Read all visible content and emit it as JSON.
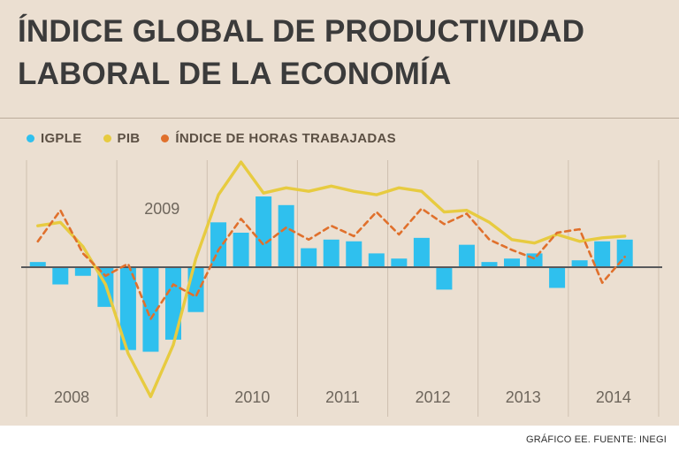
{
  "header": {
    "title_line1": "ÍNDICE GLOBAL DE PRODUCTIVIDAD",
    "title_line2": "LABORAL DE LA ECONOMÍA"
  },
  "legend": [
    {
      "label": "IGPLE",
      "color": "#2fc0ee"
    },
    {
      "label": "PIB",
      "color": "#e7cb40"
    },
    {
      "label": "ÍNDICE DE HORAS TRABAJADAS",
      "color": "#e0702c"
    }
  ],
  "footer": {
    "credit": "GRÁFICO EE. FUENTE: INEGI"
  },
  "colors": {
    "background": "#ebdfd1",
    "bar": "#2fc0ee",
    "pib_line": "#e7cb40",
    "horas_line": "#e0702c",
    "zero_line": "#58595b",
    "grid_line": "#cfc0b0",
    "year_label": "#6e665c"
  },
  "chart_data": {
    "type": "bar",
    "subtype": "combo-bar-line",
    "x": [
      "2008Q1",
      "2008Q2",
      "2008Q3",
      "2008Q4",
      "2009Q1",
      "2009Q2",
      "2009Q3",
      "2009Q4",
      "2010Q1",
      "2010Q2",
      "2010Q3",
      "2010Q4",
      "2011Q1",
      "2011Q2",
      "2011Q3",
      "2011Q4",
      "2012Q1",
      "2012Q2",
      "2012Q3",
      "2012Q4",
      "2013Q1",
      "2013Q2",
      "2013Q3",
      "2013Q4",
      "2014Q1",
      "2014Q2",
      "2014Q3"
    ],
    "years": [
      {
        "label": "2008",
        "label_position": "bottom"
      },
      {
        "label": "2009",
        "label_position": "inside"
      },
      {
        "label": "2010",
        "label_position": "bottom"
      },
      {
        "label": "2011",
        "label_position": "bottom"
      },
      {
        "label": "2012",
        "label_position": "bottom"
      },
      {
        "label": "2013",
        "label_position": "bottom"
      },
      {
        "label": "2014",
        "label_position": "bottom"
      }
    ],
    "series": [
      {
        "name": "IGPLE",
        "render": "bar",
        "color": "#2fc0ee",
        "values": [
          0.3,
          -1.0,
          -0.5,
          -2.3,
          -4.8,
          -4.9,
          -4.2,
          -2.6,
          2.6,
          2.0,
          4.1,
          3.6,
          1.1,
          1.6,
          1.5,
          0.8,
          0.5,
          1.7,
          -1.3,
          1.3,
          0.3,
          0.5,
          0.8,
          -1.2,
          0.4,
          1.5,
          1.6
        ]
      },
      {
        "name": "PIB",
        "render": "line",
        "style": "solid",
        "color": "#e7cb40",
        "values": [
          2.4,
          2.6,
          1.2,
          -1.0,
          -5.0,
          -7.5,
          -4.5,
          0.5,
          4.2,
          6.1,
          4.3,
          4.6,
          4.4,
          4.7,
          4.4,
          4.2,
          4.6,
          4.4,
          3.2,
          3.3,
          2.6,
          1.6,
          1.4,
          1.9,
          1.5,
          1.7,
          1.8
        ]
      },
      {
        "name": "ÍNDICE DE HORAS TRABAJADAS",
        "render": "line",
        "style": "dashed",
        "color": "#e0702c",
        "values": [
          1.5,
          3.3,
          0.8,
          -0.5,
          0.2,
          -3.0,
          -1.0,
          -1.7,
          1.0,
          2.8,
          1.3,
          2.3,
          1.6,
          2.4,
          1.8,
          3.2,
          1.9,
          3.4,
          2.5,
          3.1,
          1.6,
          1.0,
          0.5,
          2.0,
          2.2,
          -0.9,
          0.6
        ]
      }
    ],
    "ylim": [
      -8.5,
      6.5
    ],
    "baseline": 0,
    "grid": "vertical-year-lines",
    "legend_position": "top-left",
    "title": "ÍNDICE GLOBAL DE PRODUCTIVIDAD LABORAL DE LA ECONOMÍA",
    "xlabel": "",
    "ylabel": ""
  }
}
